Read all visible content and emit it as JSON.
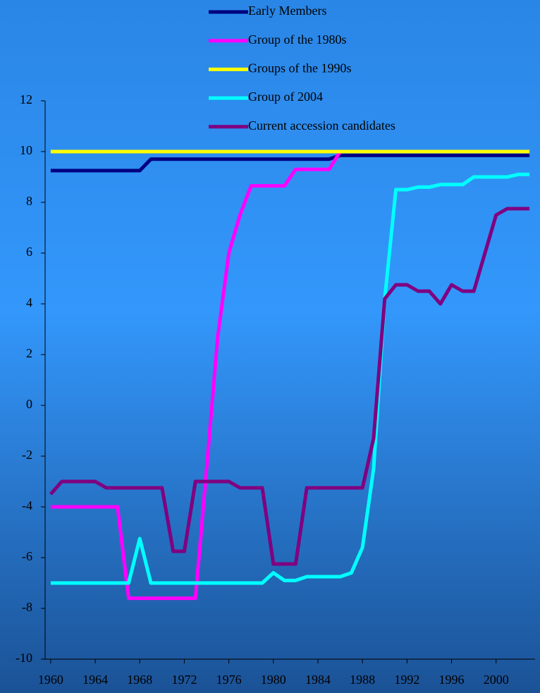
{
  "chart_data": {
    "type": "line",
    "x": [
      1960,
      1961,
      1962,
      1963,
      1964,
      1965,
      1966,
      1967,
      1968,
      1969,
      1970,
      1971,
      1972,
      1973,
      1974,
      1975,
      1976,
      1977,
      1978,
      1979,
      1980,
      1981,
      1982,
      1983,
      1984,
      1985,
      1986,
      1987,
      1988,
      1989,
      1990,
      1991,
      1992,
      1993,
      1994,
      1995,
      1996,
      1997,
      1998,
      1999,
      2000,
      2001,
      2002,
      2003
    ],
    "series": [
      {
        "name": "Early Members",
        "color": "#000080",
        "values": [
          9.25,
          9.25,
          9.25,
          9.25,
          9.25,
          9.25,
          9.25,
          9.25,
          9.25,
          9.7,
          9.7,
          9.7,
          9.7,
          9.7,
          9.7,
          9.7,
          9.7,
          9.7,
          9.7,
          9.7,
          9.7,
          9.7,
          9.7,
          9.7,
          9.7,
          9.7,
          9.85,
          9.85,
          9.85,
          9.85,
          9.85,
          9.85,
          9.85,
          9.85,
          9.85,
          9.85,
          9.85,
          9.85,
          9.85,
          9.85,
          9.85,
          9.85,
          9.85,
          9.85
        ]
      },
      {
        "name": "Group of the 1980s",
        "color": "#ff00ff",
        "values": [
          -4,
          -4,
          -4,
          -4,
          -4,
          -4,
          -4,
          -7.6,
          -7.6,
          -7.6,
          -7.6,
          -7.6,
          -7.6,
          -7.6,
          -2.5,
          2.7,
          6,
          7.5,
          8.65,
          8.65,
          8.65,
          8.65,
          9.3,
          9.3,
          9.3,
          9.3,
          10,
          10,
          10,
          10,
          10,
          10,
          10,
          10,
          10,
          10,
          10,
          10,
          10,
          10,
          10,
          10,
          10,
          10
        ]
      },
      {
        "name": "Groups of the 1990s",
        "color": "#ffff00",
        "values": [
          10,
          10,
          10,
          10,
          10,
          10,
          10,
          10,
          10,
          10,
          10,
          10,
          10,
          10,
          10,
          10,
          10,
          10,
          10,
          10,
          10,
          10,
          10,
          10,
          10,
          10,
          10,
          10,
          10,
          10,
          10,
          10,
          10,
          10,
          10,
          10,
          10,
          10,
          10,
          10,
          10,
          10,
          10,
          10
        ]
      },
      {
        "name": "Group of 2004",
        "color": "#00ffff",
        "values": [
          -7,
          -7,
          -7,
          -7,
          -7,
          -7,
          -7,
          -7,
          -5.25,
          -7,
          -7,
          -7,
          -7,
          -7,
          -7,
          -7,
          -7,
          -7,
          -7,
          -7,
          -6.6,
          -6.9,
          -6.9,
          -6.75,
          -6.75,
          -6.75,
          -6.75,
          -6.6,
          -5.6,
          -2.5,
          4.2,
          8.5,
          8.5,
          8.6,
          8.6,
          8.7,
          8.7,
          8.7,
          9,
          9,
          9,
          9,
          9.1,
          9.1
        ]
      },
      {
        "name": "Current accession candidates",
        "color": "#800080",
        "values": [
          -3.5,
          -3,
          -3,
          -3,
          -3,
          -3.25,
          -3.25,
          -3.25,
          -3.25,
          -3.25,
          -3.25,
          -5.75,
          -5.75,
          -3,
          -3,
          -3,
          -3,
          -3.25,
          -3.25,
          -3.25,
          -6.25,
          -6.25,
          -6.25,
          -3.25,
          -3.25,
          -3.25,
          -3.25,
          -3.25,
          -3.25,
          -1.3,
          4.2,
          4.75,
          4.75,
          4.5,
          4.5,
          4,
          4.75,
          4.5,
          4.5,
          6,
          7.5,
          7.75,
          7.75,
          7.75
        ]
      }
    ],
    "xlim": [
      1959.5,
      2003.5
    ],
    "xticks": [
      1960,
      1964,
      1968,
      1972,
      1976,
      1980,
      1984,
      1988,
      1992,
      1996,
      2000
    ],
    "ylim": [
      -10,
      12
    ],
    "yticks": [
      -10,
      -8,
      -6,
      -4,
      -2,
      0,
      2,
      4,
      6,
      8,
      10,
      12
    ],
    "legend": "top"
  }
}
